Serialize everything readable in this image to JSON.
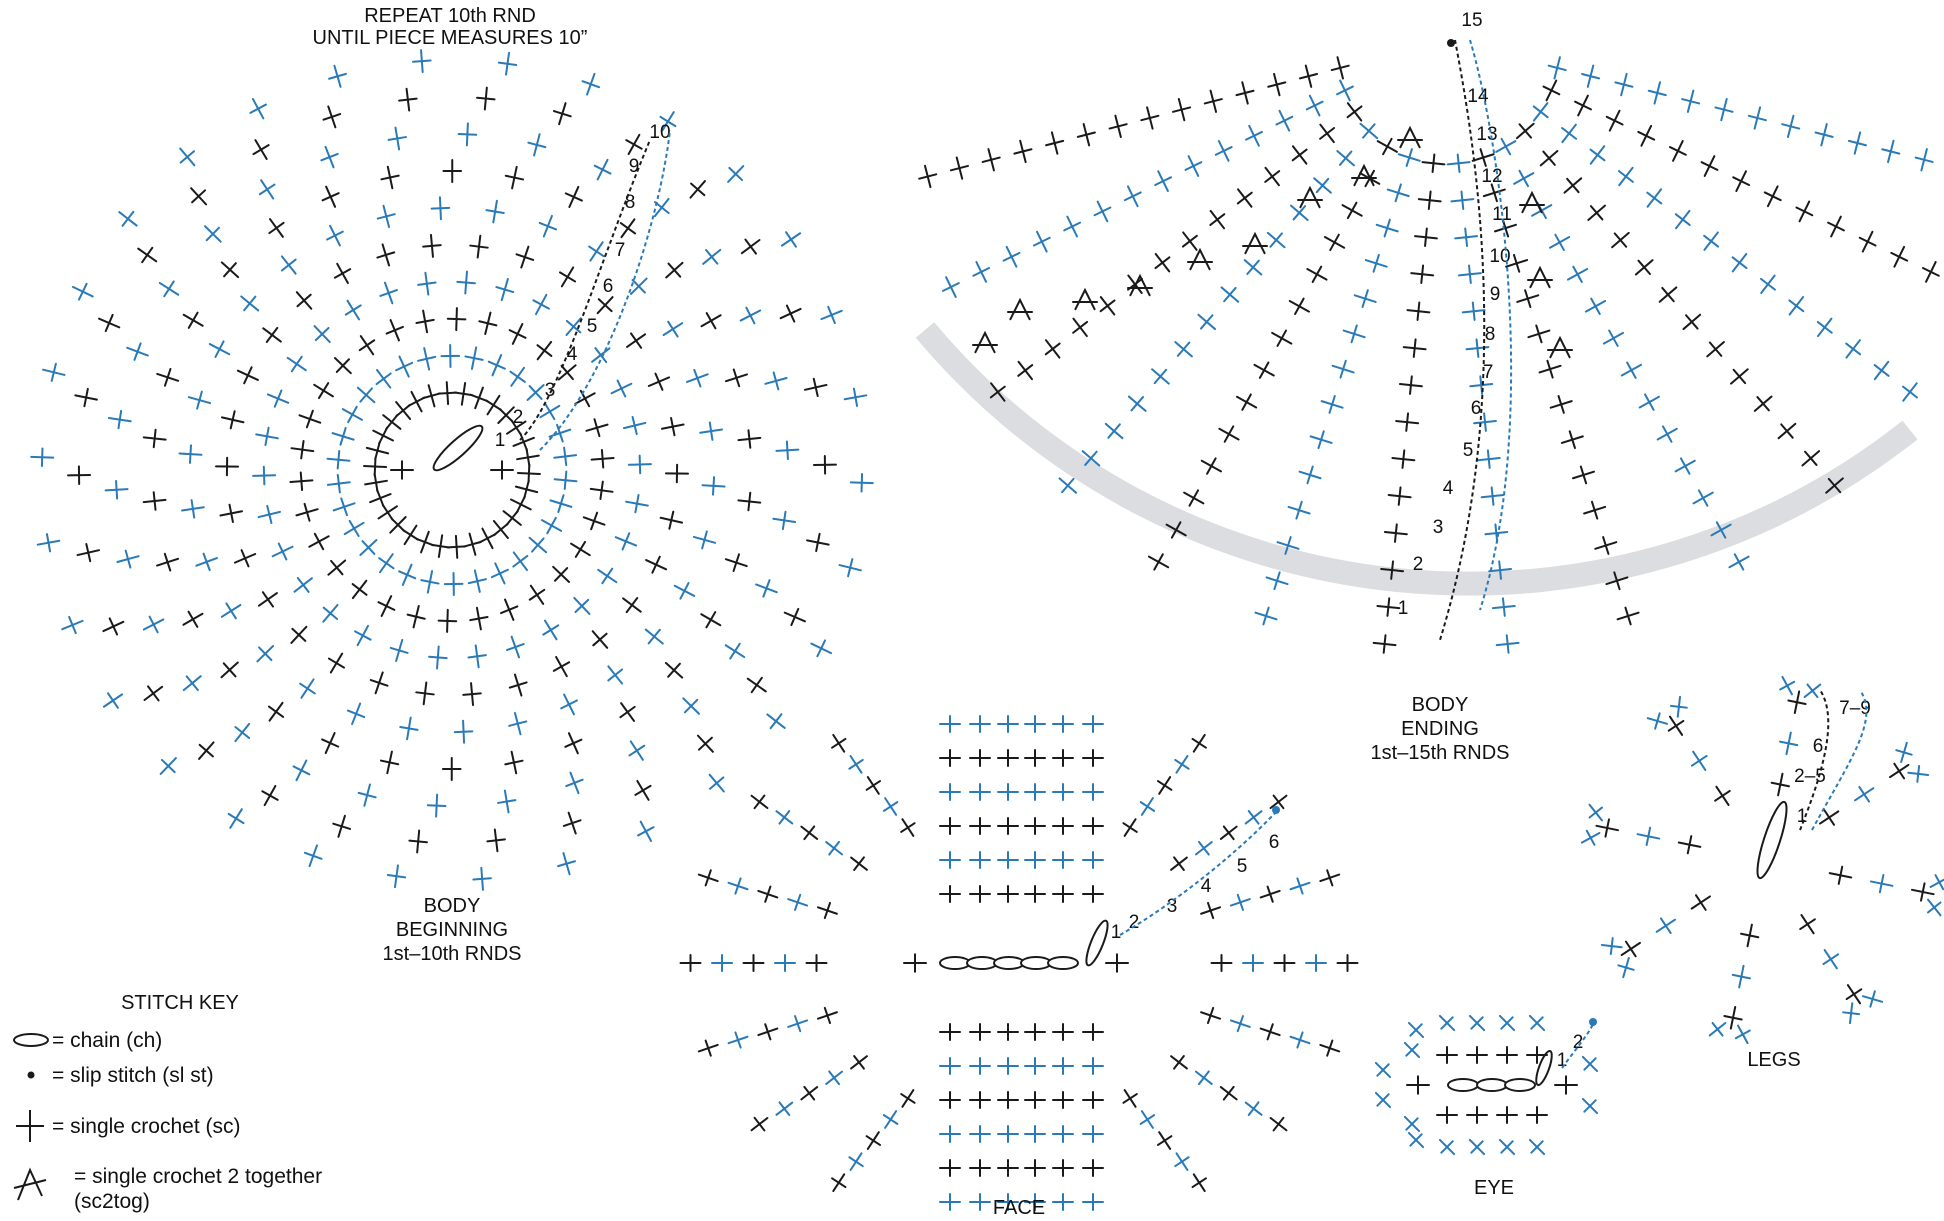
{
  "colors": {
    "blue": "#2a7ab8",
    "black": "#1a1a1a",
    "band": "#dcdde0",
    "guide_gray": "#a8a8a8"
  },
  "sections": {
    "body_beginning": {
      "repeat_note_1": "REPEAT 10th RND",
      "repeat_note_2": "UNTIL PIECE MEASURES 10”",
      "title_1": "BODY",
      "title_2": "BEGINNING",
      "title_3": "1st–10th RNDS",
      "round_labels": [
        "1",
        "2",
        "3",
        "4",
        "5",
        "6",
        "7",
        "8",
        "9",
        "10"
      ]
    },
    "body_ending": {
      "title_1": "BODY",
      "title_2": "ENDING",
      "title_3": "1st–15th RNDS",
      "round_labels": [
        "1",
        "2",
        "3",
        "4",
        "5",
        "6",
        "7",
        "8",
        "9",
        "10",
        "11",
        "12",
        "13",
        "14",
        "15"
      ]
    },
    "face": {
      "title": "FACE",
      "round_labels": [
        "1",
        "2",
        "3",
        "4",
        "5",
        "6"
      ]
    },
    "eye": {
      "title": "EYE",
      "round_labels": [
        "1",
        "2"
      ]
    },
    "legs": {
      "title": "LEGS",
      "round_labels": [
        "1",
        "2–5",
        "6",
        "7–9"
      ]
    }
  },
  "stitch_key": {
    "title": "STITCH KEY",
    "items": [
      {
        "symbol": "chain-oval",
        "label": "= chain (ch)"
      },
      {
        "symbol": "slip-dot",
        "label": "= slip stitch (sl st)"
      },
      {
        "symbol": "sc-cross",
        "label": "= single crochet (sc)"
      },
      {
        "symbol": "sc2tog-caret",
        "label": "= single crochet 2 together"
      }
    ],
    "sc2tog_abbrev": "(sc2tog)"
  }
}
